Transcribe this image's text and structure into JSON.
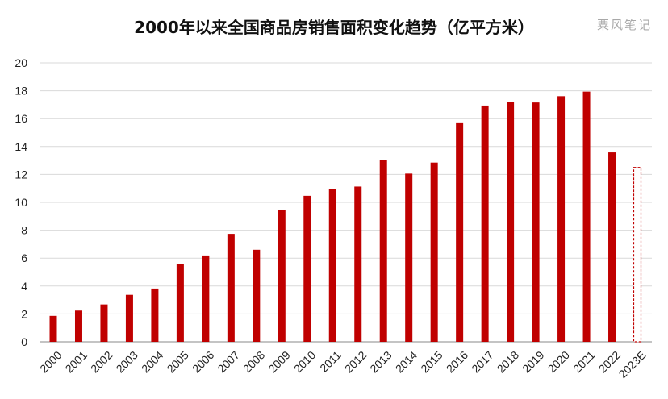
{
  "watermark": "粟风笔记",
  "chart_data": {
    "type": "bar",
    "title": "2000年以来全国商品房销售面积变化趋势（亿平方米）",
    "xlabel": "",
    "ylabel": "",
    "ylim": [
      0,
      20
    ],
    "yticks": [
      0,
      2,
      4,
      6,
      8,
      10,
      12,
      14,
      16,
      18,
      20
    ],
    "grid": true,
    "categories": [
      "2000",
      "2001",
      "2002",
      "2003",
      "2004",
      "2005",
      "2006",
      "2007",
      "2008",
      "2009",
      "2010",
      "2011",
      "2012",
      "2013",
      "2014",
      "2015",
      "2016",
      "2017",
      "2018",
      "2019",
      "2020",
      "2021",
      "2022",
      "2023E"
    ],
    "values": [
      1.86,
      2.24,
      2.68,
      3.37,
      3.82,
      5.55,
      6.19,
      7.74,
      6.6,
      9.48,
      10.47,
      10.94,
      11.13,
      13.06,
      12.06,
      12.85,
      15.73,
      16.94,
      17.17,
      17.16,
      17.61,
      17.94,
      13.58,
      12.5
    ],
    "estimated": [
      false,
      false,
      false,
      false,
      false,
      false,
      false,
      false,
      false,
      false,
      false,
      false,
      false,
      false,
      false,
      false,
      false,
      false,
      false,
      false,
      false,
      false,
      false,
      true
    ],
    "bar_color": "#C00000",
    "grid_color": "#D9D9D9"
  }
}
